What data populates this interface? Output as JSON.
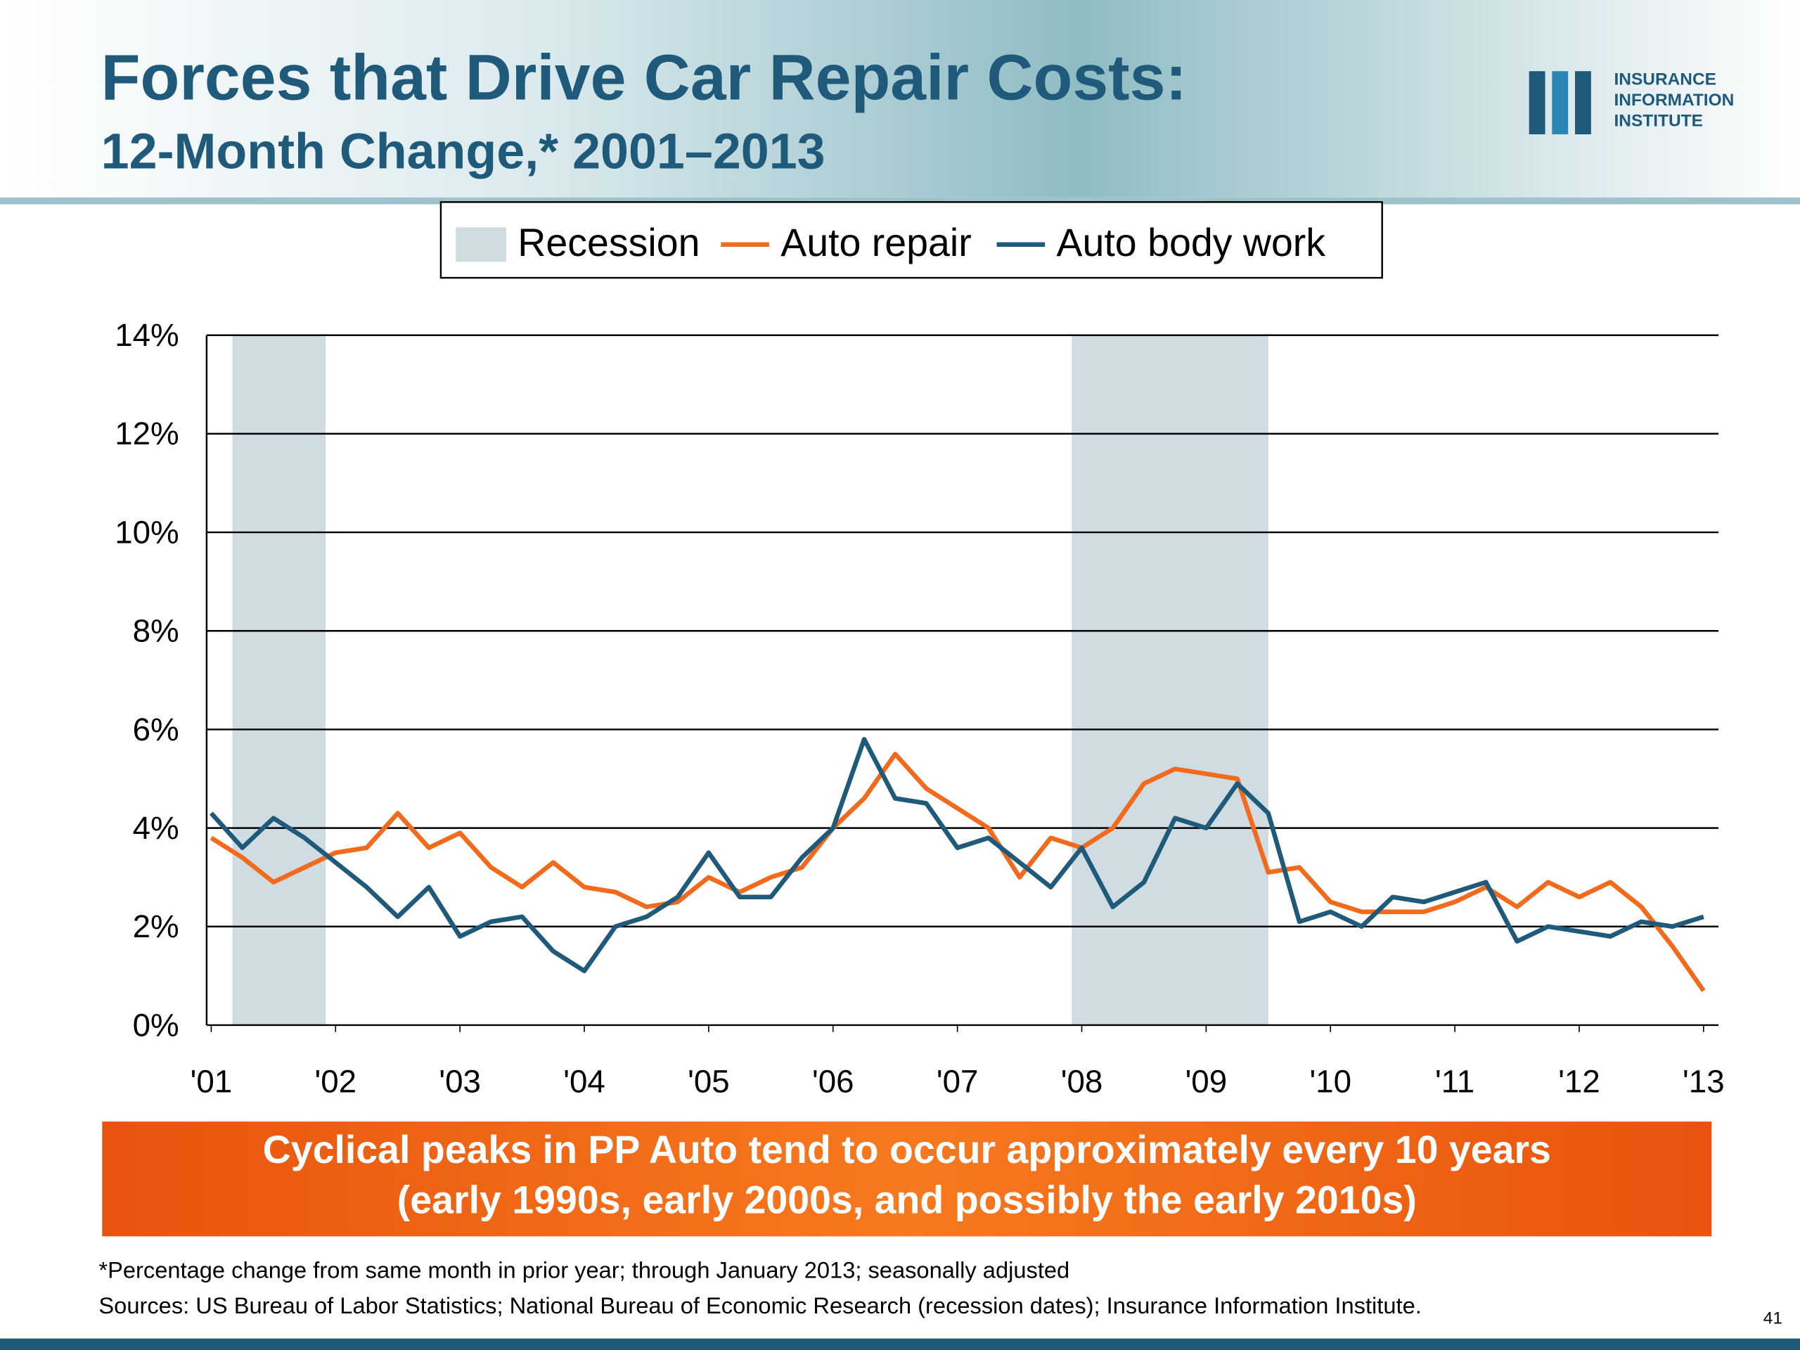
{
  "logo": [
    "INSURANCE",
    "INFORMATION",
    "INSTITUTE"
  ],
  "chart_data": {
    "type": "line",
    "title": "Forces that Drive Car Repair Costs:",
    "subtitle": "12-Month Change,* 2001–2013",
    "x": [
      2001,
      2001.25,
      2001.5,
      2001.75,
      2002,
      2002.25,
      2002.5,
      2002.75,
      2003,
      2003.25,
      2003.5,
      2003.75,
      2004,
      2004.25,
      2004.5,
      2004.75,
      2005,
      2005.25,
      2005.5,
      2005.75,
      2006,
      2006.25,
      2006.5,
      2006.75,
      2007,
      2007.25,
      2007.5,
      2007.75,
      2008,
      2008.25,
      2008.5,
      2008.75,
      2009,
      2009.25,
      2009.5,
      2009.75,
      2010,
      2010.25,
      2010.5,
      2010.75,
      2011,
      2011.25,
      2011.5,
      2011.75,
      2012,
      2012.25,
      2012.5,
      2012.75,
      2013
    ],
    "series": [
      {
        "name": "Auto repair",
        "color": "#f26b1d",
        "values": [
          3.8,
          3.4,
          2.9,
          3.2,
          3.5,
          3.6,
          4.3,
          3.6,
          3.9,
          3.2,
          2.8,
          3.3,
          2.8,
          2.7,
          2.4,
          2.5,
          3.0,
          2.7,
          3.0,
          3.2,
          4.0,
          4.6,
          5.5,
          4.8,
          4.4,
          4.0,
          3.0,
          3.8,
          3.6,
          4.0,
          4.9,
          5.2,
          5.1,
          5.0,
          3.1,
          3.2,
          2.5,
          2.3,
          2.3,
          2.3,
          2.5,
          2.8,
          2.4,
          2.9,
          2.6,
          2.9,
          2.4,
          1.6,
          0.7
        ]
      },
      {
        "name": "Auto body work",
        "color": "#1f5a7a",
        "values": [
          4.3,
          3.6,
          4.2,
          3.8,
          3.3,
          2.8,
          2.2,
          2.8,
          1.8,
          2.1,
          2.2,
          1.5,
          1.1,
          2.0,
          2.2,
          2.6,
          3.5,
          2.6,
          2.6,
          3.4,
          4.0,
          5.8,
          4.6,
          4.5,
          3.6,
          3.8,
          3.3,
          2.8,
          3.6,
          2.4,
          2.9,
          4.2,
          4.0,
          4.9,
          4.3,
          2.1,
          2.3,
          2.0,
          2.6,
          2.5,
          2.7,
          2.9,
          1.7,
          2.0,
          1.9,
          1.8,
          2.1,
          2.0,
          2.2
        ]
      }
    ],
    "recession": {
      "name": "Recession",
      "color": "#cfdce2",
      "spans": [
        [
          2001.17,
          2001.92
        ],
        [
          2007.92,
          2009.5
        ]
      ]
    },
    "xlim": [
      2001,
      2013
    ],
    "xticks": [
      {
        "value": 2001,
        "label": "'01"
      },
      {
        "value": 2002,
        "label": "'02"
      },
      {
        "value": 2003,
        "label": "'03"
      },
      {
        "value": 2004,
        "label": "'04"
      },
      {
        "value": 2005,
        "label": "'05"
      },
      {
        "value": 2006,
        "label": "'06"
      },
      {
        "value": 2007,
        "label": "'07"
      },
      {
        "value": 2008,
        "label": "'08"
      },
      {
        "value": 2009,
        "label": "'09"
      },
      {
        "value": 2010,
        "label": "'10"
      },
      {
        "value": 2011,
        "label": "'11"
      },
      {
        "value": 2012,
        "label": "'12"
      },
      {
        "value": 2013,
        "label": "'13"
      }
    ],
    "ylim": [
      0,
      14
    ],
    "yticks": [
      {
        "value": 0,
        "label": "0%"
      },
      {
        "value": 2,
        "label": "2%"
      },
      {
        "value": 4,
        "label": "4%"
      },
      {
        "value": 6,
        "label": "6%"
      },
      {
        "value": 8,
        "label": "8%"
      },
      {
        "value": 10,
        "label": "10%"
      },
      {
        "value": 12,
        "label": "12%"
      },
      {
        "value": 14,
        "label": "14%"
      }
    ],
    "grid": true
  },
  "callout": [
    "Cyclical peaks in PP Auto tend to occur approximately every 10 years",
    "(early 1990s, early 2000s, and possibly the early 2010s)"
  ],
  "footnote": "*Percentage change from same month in prior year; through January 2013; seasonally adjusted",
  "sources": "Sources: US Bureau of Labor Statistics;  National Bureau of Economic Research (recession dates); Insurance Information Institute.",
  "page_number": "41"
}
